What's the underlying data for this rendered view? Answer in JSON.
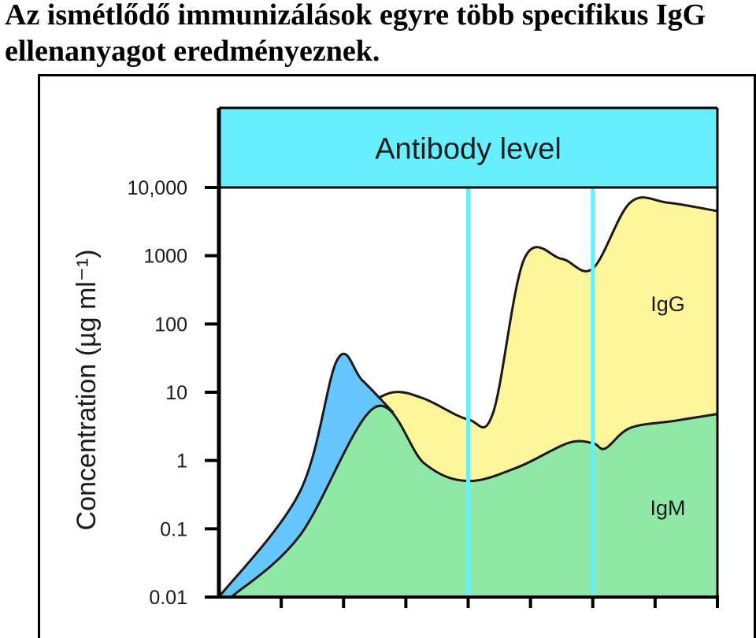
{
  "heading": {
    "line1": "Az ismétlődő immunizálások egyre több specifikus IgG",
    "line2": "ellenanyagot eredményeznek."
  },
  "chart_data": {
    "type": "area",
    "title": "Antibody level",
    "ylabel": "Concentration (µg ml⁻¹)",
    "yscale": "log",
    "ylim": [
      0.01,
      10000
    ],
    "yticks": [
      "10,000",
      "1000",
      "100",
      "10",
      "1",
      "0.1",
      "0.01"
    ],
    "ytick_values": [
      10000,
      1000,
      100,
      10,
      1,
      0.1,
      0.01
    ],
    "xlim": [
      0,
      8
    ],
    "xticks": [
      1,
      2,
      3,
      4,
      5,
      6,
      7,
      8
    ],
    "immunization_lines_x": [
      4,
      6
    ],
    "grid": false,
    "series": [
      {
        "name": "IgM",
        "color": "#8fe8a6",
        "x": [
          0.2,
          1.3,
          2.5,
          3.3,
          4.0,
          4.8,
          5.6,
          6.0,
          6.2,
          6.6,
          7.3,
          8.0
        ],
        "values": [
          0.01,
          0.08,
          6,
          0.9,
          0.5,
          0.8,
          1.8,
          1.8,
          1.5,
          3.0,
          3.8,
          4.8
        ]
      },
      {
        "name": "IgG",
        "color": "#fff59a",
        "x": [
          2.3,
          2.8,
          3.3,
          4.0,
          4.4,
          4.9,
          5.5,
          6.0,
          6.6,
          7.2,
          8.0
        ],
        "values": [
          6,
          10,
          8,
          4,
          5,
          900,
          900,
          650,
          6000,
          6000,
          4500
        ]
      },
      {
        "name": "",
        "color": "#66c6ff",
        "x": [
          0.0,
          1.3,
          1.9,
          2.3,
          2.8
        ],
        "values": [
          0.01,
          0.35,
          30,
          15,
          5
        ]
      }
    ],
    "header_band_color": "#66f0ff",
    "immunization_line_color": "#66f0ff",
    "annotations": [
      "IgG",
      "IgM"
    ]
  }
}
